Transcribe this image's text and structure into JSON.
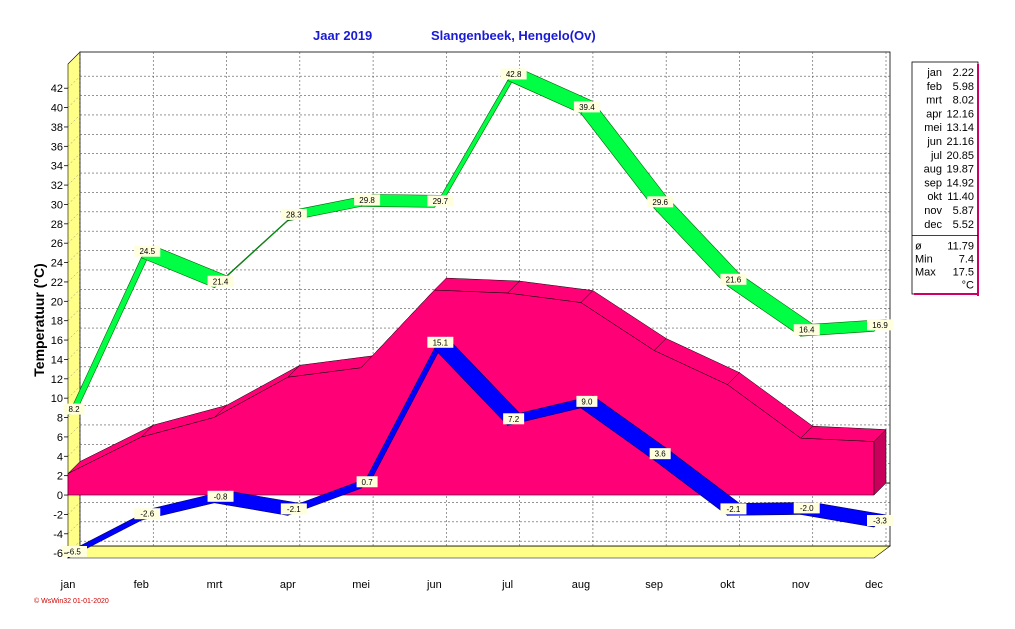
{
  "header": {
    "year_label": "Jaar  2019",
    "station": "Slangenbeek, Hengelo(Ov)"
  },
  "credit": "© WsWin32  01-01-2020",
  "colors": {
    "max_band": "#00ff44",
    "mean_area": "#ff0077",
    "min_band": "#0000ff",
    "title": "#1a1ad6",
    "wall": "#ffff88",
    "credit": "#d40000",
    "legend_border": "#cc0066"
  },
  "chart_data": {
    "type": "area",
    "title": "",
    "ylabel": "Temperatuur  (°C)",
    "xlabel": "",
    "ylim": [
      -6.5,
      44.5
    ],
    "yticks": [
      -6,
      -4,
      -2,
      0,
      2,
      4,
      6,
      8,
      10,
      12,
      14,
      16,
      18,
      20,
      22,
      24,
      26,
      28,
      30,
      32,
      34,
      36,
      38,
      40,
      42
    ],
    "grid": true,
    "categories": [
      "jan",
      "feb",
      "mrt",
      "apr",
      "mei",
      "jun",
      "jul",
      "aug",
      "sep",
      "okt",
      "nov",
      "dec"
    ],
    "series": [
      {
        "kind": "max",
        "values": [
          8.2,
          24.5,
          21.4,
          28.3,
          29.8,
          29.7,
          42.8,
          39.4,
          29.6,
          21.6,
          16.4,
          16.9
        ],
        "labels": [
          "8.2",
          "24.5",
          "21.4",
          "28.3",
          "29.8",
          "29.7",
          "42.8",
          "39.4",
          "29.6",
          "21.6",
          "16.4",
          "16.9"
        ]
      },
      {
        "kind": "mean",
        "values": [
          2.22,
          5.98,
          8.02,
          12.16,
          13.14,
          21.16,
          20.85,
          19.87,
          14.92,
          11.4,
          5.87,
          5.52
        ]
      },
      {
        "kind": "min",
        "values": [
          -6.5,
          -2.6,
          -0.8,
          -2.1,
          0.7,
          15.1,
          7.2,
          9.0,
          3.6,
          -2.1,
          -2.0,
          -3.3
        ],
        "labels": [
          "-6.5",
          "-2.6",
          "-0.8",
          "-2.1",
          "0.7",
          "15.1",
          "7.2",
          "9.0",
          "3.6",
          "-2.1",
          "-2.0",
          "-3.3"
        ]
      }
    ]
  },
  "legend": {
    "months": [
      {
        "month": "jan",
        "value": "2.22"
      },
      {
        "month": "feb",
        "value": "5.98"
      },
      {
        "month": "mrt",
        "value": "8.02"
      },
      {
        "month": "apr",
        "value": "12.16"
      },
      {
        "month": "mei",
        "value": "13.14"
      },
      {
        "month": "jun",
        "value": "21.16"
      },
      {
        "month": "jul",
        "value": "20.85"
      },
      {
        "month": "aug",
        "value": "19.87"
      },
      {
        "month": "sep",
        "value": "14.92"
      },
      {
        "month": "okt",
        "value": "11.40"
      },
      {
        "month": "nov",
        "value": "5.87"
      },
      {
        "month": "dec",
        "value": "5.52"
      }
    ],
    "stats": [
      {
        "label": "ø",
        "value": "11.79"
      },
      {
        "label": "Min",
        "value": "7.4"
      },
      {
        "label": "Max",
        "value": "17.5"
      }
    ],
    "unit": "°C"
  }
}
